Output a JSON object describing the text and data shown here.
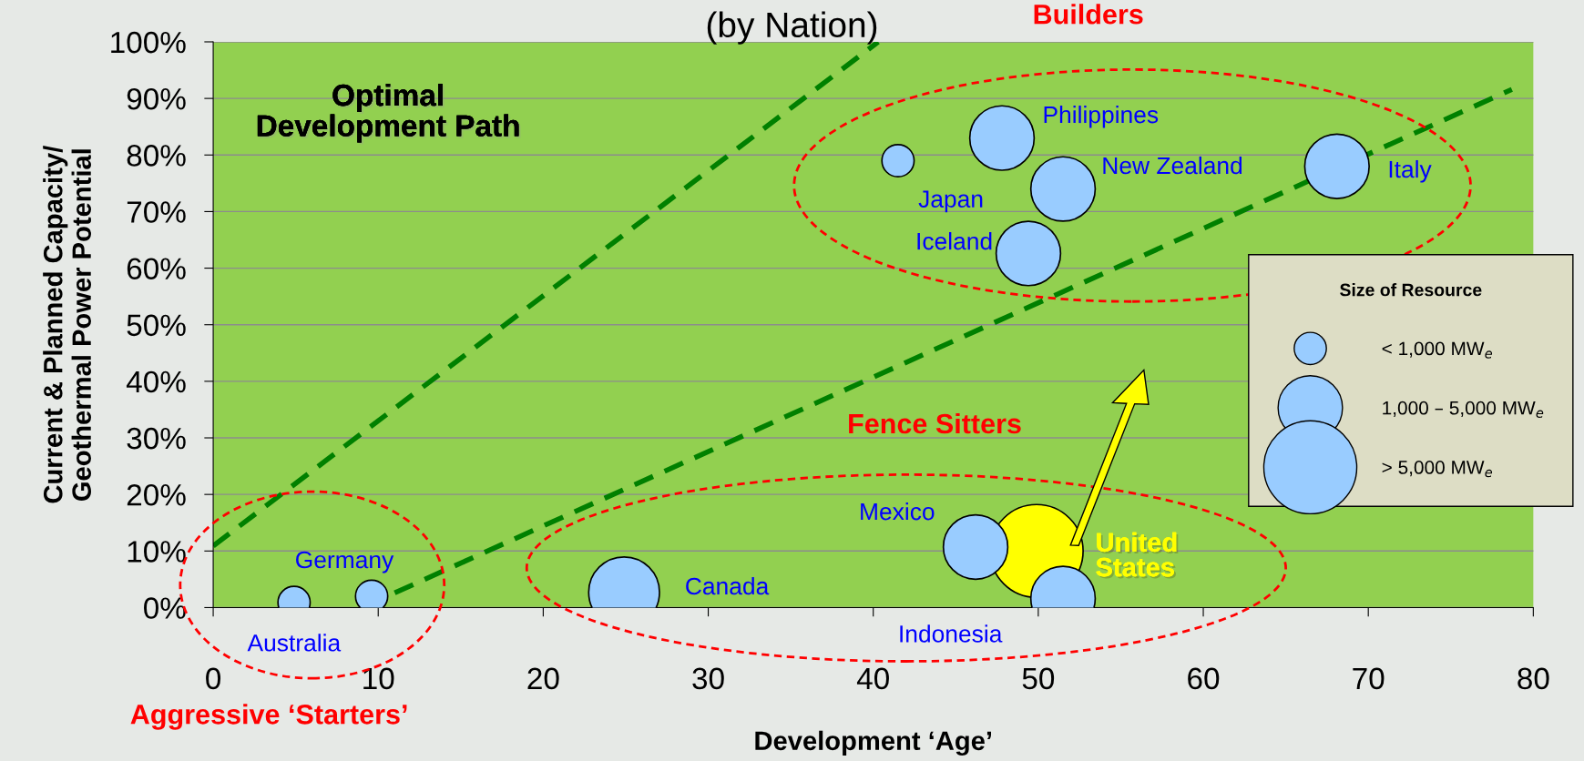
{
  "chart_data": {
    "type": "bubble",
    "title": "(by Nation)",
    "xlabel": "Development ‘Age’",
    "ylabel": "Current & Planned Capacity/\nGeothermal Power Potential",
    "legend_title": "Size of Resource",
    "size_legend": [
      {
        "value": 0.12,
        "label": "< 1,000 MW$_{e}$"
      },
      {
        "value": 0.48,
        "label": "1,000 – 5,000 MW$_{e}$"
      },
      {
        "value": 1,
        "label": "> 5,000 MW$_{e}$"
      }
    ],
    "xlim": [
      0,
      80
    ],
    "xticks": [
      0,
      10,
      20,
      30,
      40,
      50,
      60,
      70,
      80
    ],
    "ylim": [
      0,
      100
    ],
    "yticks": [
      {
        "value": 0,
        "label": "0%"
      },
      {
        "value": 10,
        "label": "10%"
      },
      {
        "value": 20,
        "label": "20%"
      },
      {
        "value": 30,
        "label": "30%"
      },
      {
        "value": 40,
        "label": "40%"
      },
      {
        "value": 50,
        "label": "50%"
      },
      {
        "value": 60,
        "label": "60%"
      },
      {
        "value": 70,
        "label": "70%"
      },
      {
        "value": 80,
        "label": "80%"
      },
      {
        "value": 90,
        "label": "90%"
      },
      {
        "value": 100,
        "label": "100%"
      }
    ],
    "grid": "y",
    "legend": "right",
    "series": [
      {
        "type": "line",
        "color": "#008000",
        "line_style": "dashed",
        "marker": "none",
        "x": [
          0,
          40.3
        ],
        "values": [
          10.9,
          100
        ]
      },
      {
        "type": "line",
        "color": "#008000",
        "line_style": "dashed",
        "marker": "none",
        "x": [
          11,
          78.7
        ],
        "values": [
          2.6,
          91.6
        ]
      },
      {
        "name": "Australia",
        "color": "#99ccff",
        "x": [
          4.9
        ],
        "values": [
          0.9
        ],
        "sizes": [
          0.12
        ]
      },
      {
        "name": "Germany",
        "color": "#99ccff",
        "x": [
          9.6
        ],
        "values": [
          2
        ],
        "sizes": [
          0.12
        ]
      },
      {
        "name": "Canada",
        "color": "#99ccff",
        "x": [
          24.9
        ],
        "values": [
          2.7
        ],
        "sizes": [
          0.58
        ]
      },
      {
        "name": "United\nStates",
        "color": "#ffff00",
        "x": [
          49.9
        ],
        "values": [
          10
        ],
        "sizes": [
          1
        ]
      },
      {
        "name": "Mexico",
        "color": "#99ccff",
        "x": [
          46.2
        ],
        "values": [
          10.7
        ],
        "sizes": [
          0.48
        ]
      },
      {
        "name": "Indonesia",
        "color": "#99ccff",
        "x": [
          51.5
        ],
        "values": [
          1.6
        ],
        "sizes": [
          0.48
        ]
      },
      {
        "name": "Japan",
        "color": "#99ccff",
        "x": [
          41.5
        ],
        "values": [
          79
        ],
        "sizes": [
          0.12
        ]
      },
      {
        "name": "Philippines",
        "color": "#99ccff",
        "x": [
          47.8
        ],
        "values": [
          83
        ],
        "sizes": [
          0.48
        ]
      },
      {
        "name": "New Zealand",
        "color": "#99ccff",
        "x": [
          51.5
        ],
        "values": [
          74
        ],
        "sizes": [
          0.48
        ]
      },
      {
        "name": "Iceland",
        "color": "#99ccff",
        "x": [
          49.4
        ],
        "values": [
          62.6
        ],
        "sizes": [
          0.48
        ]
      },
      {
        "name": "Italy",
        "color": "#99ccff",
        "x": [
          68.1
        ],
        "values": [
          78
        ],
        "sizes": [
          0.48
        ]
      }
    ],
    "annotations": [
      "Optimal\nDevelopment Path",
      "Builders",
      "Fence Sitters",
      "Aggressive ‘Starters’"
    ]
  }
}
